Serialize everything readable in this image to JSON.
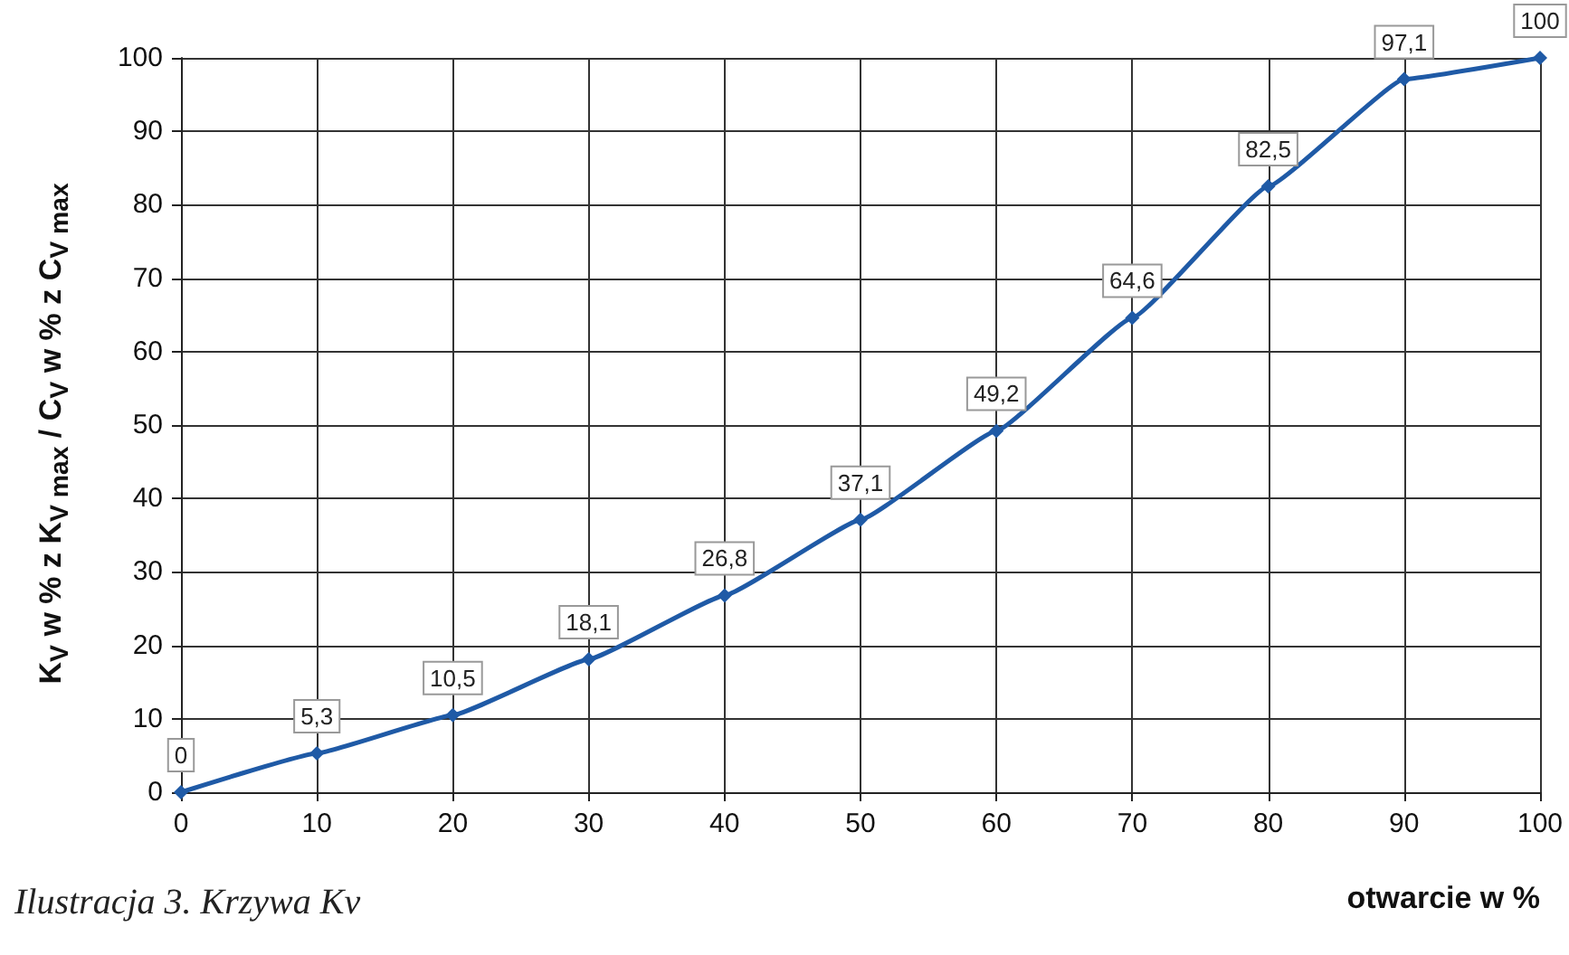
{
  "chart_data": {
    "type": "line",
    "xlabel": "otwarcie w %",
    "ylabel": "K$_{V}$ w % z K$_{V max}$ / C$_{V}$ w % z C$_{V max}$",
    "annotations": [
      "Ilustracja 3. Krzywa Kv"
    ],
    "x": [
      0,
      10,
      20,
      30,
      40,
      50,
      60,
      70,
      80,
      90,
      100
    ],
    "series": [
      {
        "color": "#1f5aa6",
        "values": [
          0,
          5.3,
          10.5,
          18.1,
          26.8,
          37.1,
          49.2,
          64.6,
          82.5,
          97.1,
          100
        ],
        "value_labels": [
          "0",
          "5,3",
          "10,5",
          "18,1",
          "26,8",
          "37,1",
          "49,2",
          "64,6",
          "82,5",
          "97,1",
          "100"
        ]
      }
    ],
    "xlim": [
      0,
      100
    ],
    "xticks": [
      0,
      10,
      20,
      30,
      40,
      50,
      60,
      70,
      80,
      90,
      100
    ],
    "ylim": [
      0,
      100
    ],
    "yticks": [
      0,
      10,
      20,
      30,
      40,
      50,
      60,
      70,
      80,
      90,
      100
    ],
    "grid": true,
    "marker": "diamond",
    "line_style": "solid"
  }
}
